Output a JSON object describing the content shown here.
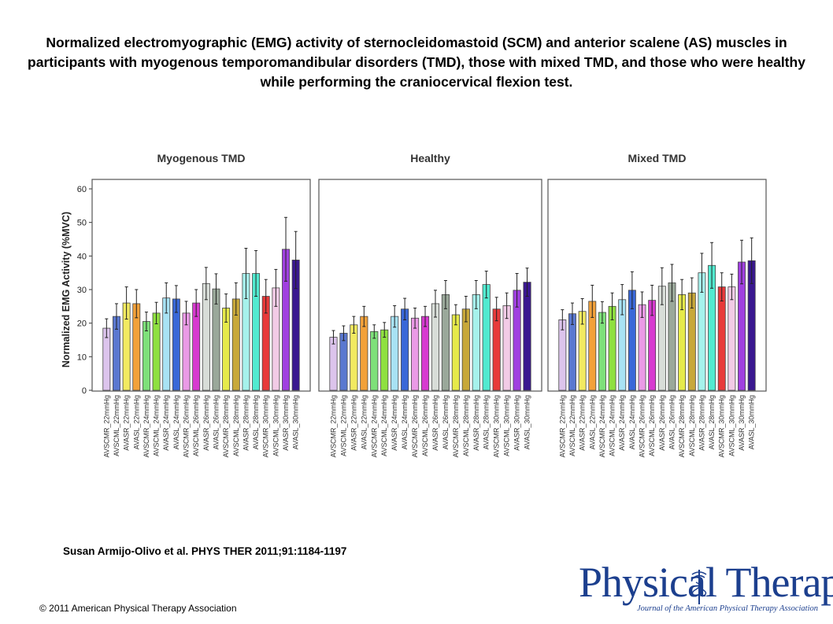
{
  "slide_title": "Normalized electromyographic (EMG) activity of sternocleidomastoid (SCM) and anterior scalene (AS) muscles in participants with myogenous temporomandibular disorders (TMD), those with mixed TMD, and those who were healthy while performing the craniocervical flexion test.",
  "citation": "Susan Armijo-Olivo et al. PHYS THER 2011;91:1184-1197",
  "copyright": "© 2011 American Physical Therapy Association",
  "logo": {
    "name": "Physical Therapy",
    "tagline": "Journal of the American Physical Therapy Association",
    "color": "#1c3f8e"
  },
  "chart_data": {
    "type": "bar",
    "ylabel": "Normalized EMG Activity (%MVC)",
    "ylim": [
      0,
      60
    ],
    "yticks": [
      0,
      10,
      20,
      30,
      40,
      50,
      60
    ],
    "grid": false,
    "categories": [
      "AVSCMR_22mmHg",
      "AVSCML_22mmHg",
      "AVASR_22mmHg",
      "AVASL_22mmHg",
      "AVSCMR_24mmHg",
      "AVSCML_24mmHg",
      "AVASR_24mmHg",
      "AVASL_24mmHg",
      "AVSCMR_26mmHg",
      "AVSCML_26mmHg",
      "AVASR_26mmHg",
      "AVASL_26mmHg",
      "AVSCMR_28mmHg",
      "AVSCML_28mmHg",
      "AVASR_28mmHg",
      "AVASL_28mmHg",
      "AVSCMR_30mmHg",
      "AVSCML_30mmHg",
      "AVASR_30mmHg",
      "AVASL_30mmHg"
    ],
    "bar_colors": [
      "#dcc4ec",
      "#5a78d0",
      "#f2ea60",
      "#f2a13a",
      "#7ee07a",
      "#8fe040",
      "#a8e2f4",
      "#3a68d8",
      "#ea9ae6",
      "#d73ad0",
      "#d8ddd8",
      "#9aa89a",
      "#e6ea4a",
      "#c8a83a",
      "#a6f2ec",
      "#52ead0",
      "#e83a3a",
      "#f2cbe6",
      "#a040e0",
      "#3a1890"
    ],
    "series": [
      {
        "name": "Myogenous TMD",
        "values": [
          18.5,
          22,
          26,
          25.8,
          20.5,
          23,
          27.5,
          27.2,
          23,
          26,
          31.8,
          30.2,
          24.5,
          27.2,
          34.8,
          34.8,
          28,
          30.5,
          42,
          38.8
        ],
        "errors": [
          2.8,
          3.8,
          4.8,
          4.2,
          2.8,
          3.2,
          4.5,
          4,
          3.5,
          4,
          4.8,
          4.5,
          4.2,
          4.8,
          7.5,
          6.8,
          5,
          5.5,
          9.5,
          8.5
        ]
      },
      {
        "name": "Healthy",
        "values": [
          15.8,
          17,
          19.5,
          22,
          17.5,
          18,
          22,
          24.2,
          21.5,
          22,
          25.8,
          28.5,
          22.5,
          24.2,
          28.5,
          31.5,
          24.2,
          25.2,
          29.8,
          32.2
        ],
        "errors": [
          2,
          2.2,
          2.5,
          3,
          2,
          2.2,
          3.2,
          3.2,
          3,
          3,
          4,
          4.2,
          3,
          3.8,
          4.2,
          4,
          3.5,
          3.8,
          5,
          4.2
        ]
      },
      {
        "name": "Mixed TMD",
        "values": [
          21,
          22.8,
          23.5,
          26.5,
          23.2,
          25,
          27,
          29.8,
          25.5,
          26.8,
          31,
          32,
          28.5,
          29,
          35,
          37.2,
          30.8,
          30.8,
          38.2,
          38.6
        ],
        "errors": [
          3,
          3.2,
          3.8,
          4.8,
          3.2,
          4,
          4.5,
          5.5,
          3.8,
          4.5,
          5.5,
          5.5,
          4.5,
          4.5,
          5.8,
          6.8,
          4.2,
          3.8,
          6.5,
          6.8
        ]
      }
    ]
  }
}
